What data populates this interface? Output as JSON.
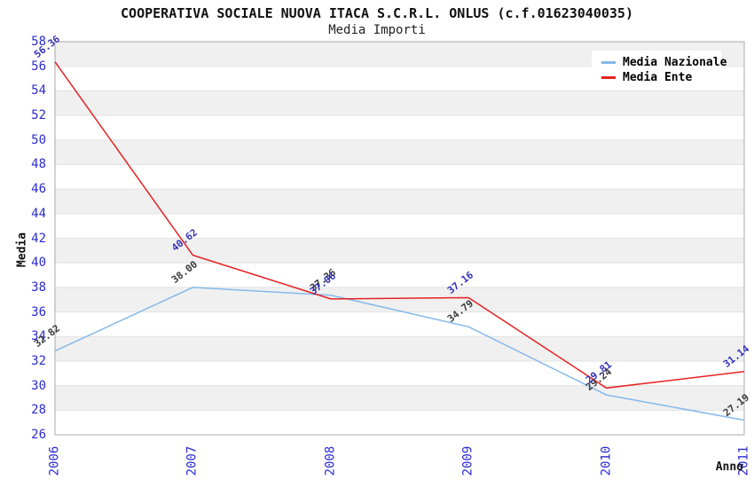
{
  "title": "COOPERATIVA SOCIALE NUOVA ITACA S.C.R.L. ONLUS (c.f.01623040035)",
  "subtitle": "Media Importi",
  "axes": {
    "y_label": "Media",
    "x_label": "Anno"
  },
  "colors": {
    "nazionale_line": "#85b9e9",
    "ente_line": "#e62222",
    "nazionale_point_label": "#3a3a3a",
    "ente_point_label": "#3333bb",
    "tick_label": "#2b2bd0",
    "band_fill": "#f0f0f0",
    "grid_line": "#e2e2e2",
    "plot_border": "#aaaaaa",
    "background": "#ffffff"
  },
  "legend_position": "top-right",
  "chart_data": {
    "type": "line",
    "title": "COOPERATIVA SOCIALE NUOVA ITACA S.C.R.L. ONLUS (c.f.01623040035)",
    "subtitle": "Media Importi",
    "xlabel": "Anno",
    "ylabel": "Media",
    "x": [
      "2006",
      "2007",
      "2008",
      "2009",
      "2010",
      "2011"
    ],
    "series": [
      {
        "name": "Media Nazionale",
        "color": "#85b9e9",
        "label_color": "#3a3a3a",
        "values": [
          32.82,
          38.0,
          37.36,
          34.79,
          29.24,
          27.19
        ]
      },
      {
        "name": "Media Ente",
        "color": "#e62222",
        "label_color": "#3333bb",
        "values": [
          56.36,
          40.62,
          37.06,
          37.16,
          29.81,
          31.14
        ]
      }
    ],
    "ylim": [
      26,
      58
    ],
    "y_tick_step": 2,
    "grid": "horizontal-bands",
    "legend_position": "top-right"
  }
}
